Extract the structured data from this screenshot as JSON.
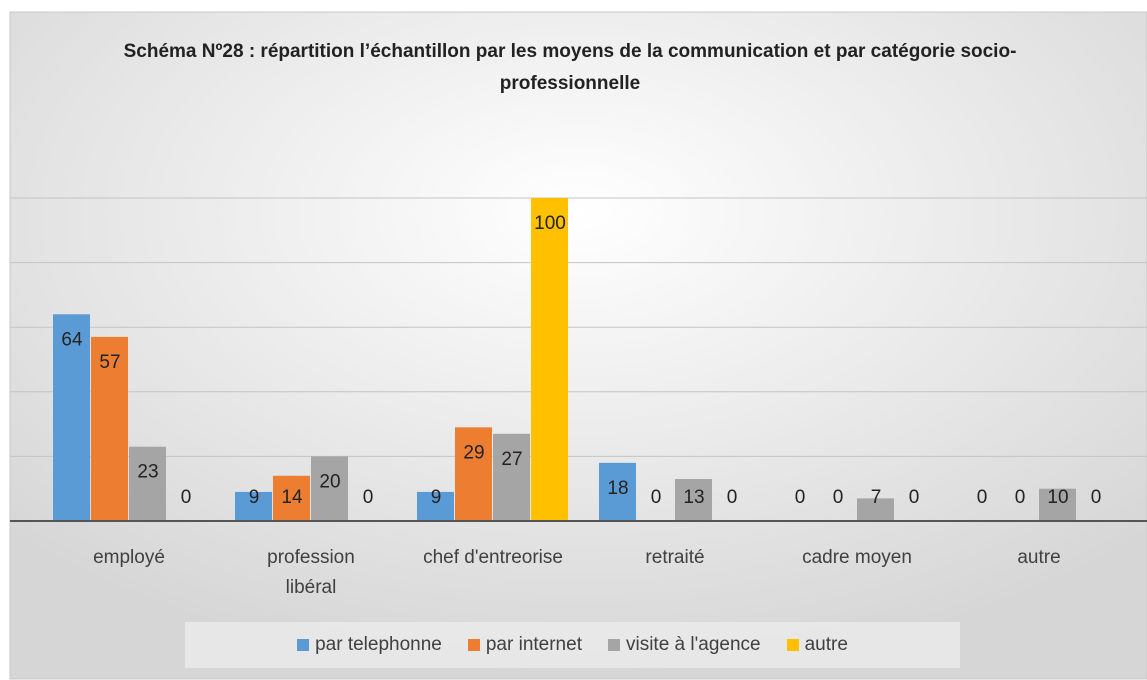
{
  "chart_data": {
    "type": "bar",
    "title": "Schéma Nº28 : répartition l’échantillon par les moyens de la communication et par catégorie socio-professionnelle",
    "categories": [
      "employé",
      "profession libéral",
      "chef d'entreorise",
      "retraité",
      "cadre moyen",
      "autre"
    ],
    "series": [
      {
        "name": "par telephonne",
        "color": "#5b9bd5",
        "values": [
          64,
          9,
          9,
          18,
          0,
          0
        ]
      },
      {
        "name": "par internet",
        "color": "#ed7d31",
        "values": [
          57,
          14,
          29,
          0,
          0,
          0
        ]
      },
      {
        "name": "visite à l'agence",
        "color": "#a5a5a5",
        "values": [
          23,
          20,
          27,
          13,
          7,
          10
        ]
      },
      {
        "name": "autre",
        "color": "#ffc000",
        "values": [
          0,
          0,
          100,
          0,
          0,
          0
        ]
      }
    ],
    "ylim": [
      0,
      100
    ],
    "yticks": [
      0,
      20,
      40,
      60,
      80,
      100
    ],
    "grid": true,
    "legend": "bottom"
  }
}
